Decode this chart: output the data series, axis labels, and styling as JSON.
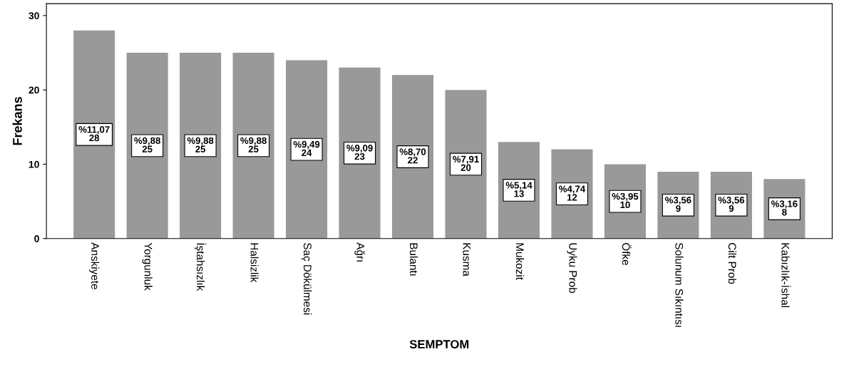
{
  "chart_data": {
    "type": "bar",
    "xlabel": "SEMPTOM",
    "ylabel": "Frekans",
    "categories": [
      "Anskiyete",
      "Yorgunluk",
      "İştahsızlık",
      "Halsizlik",
      "Saç Dökülmesi",
      "Ağrı",
      "Bulantı",
      "Kusma",
      "Mukozit",
      "Uyku Prob",
      "Öfke",
      "Solunum Sıkıntısı",
      "Cilt Prob",
      "Kabızlık-İshal"
    ],
    "values": [
      28,
      25,
      25,
      25,
      24,
      23,
      22,
      20,
      13,
      12,
      10,
      9,
      9,
      8
    ],
    "value_labels": [
      "%11,07\n28",
      "%9,88\n25",
      "%9,88\n25",
      "%9,88\n25",
      "%9,49\n24",
      "%9,09\n23",
      "%8,70\n22",
      "%7,91\n20",
      "%5,14\n13",
      "%4,74\n12",
      "%3,95\n10",
      "%3,56\n9",
      "%3,56\n9",
      "%3,16\n8"
    ],
    "color": "#999999",
    "ylim": [
      0,
      31.6
    ],
    "yticks": [
      0,
      10,
      20,
      30
    ],
    "grid": false
  }
}
